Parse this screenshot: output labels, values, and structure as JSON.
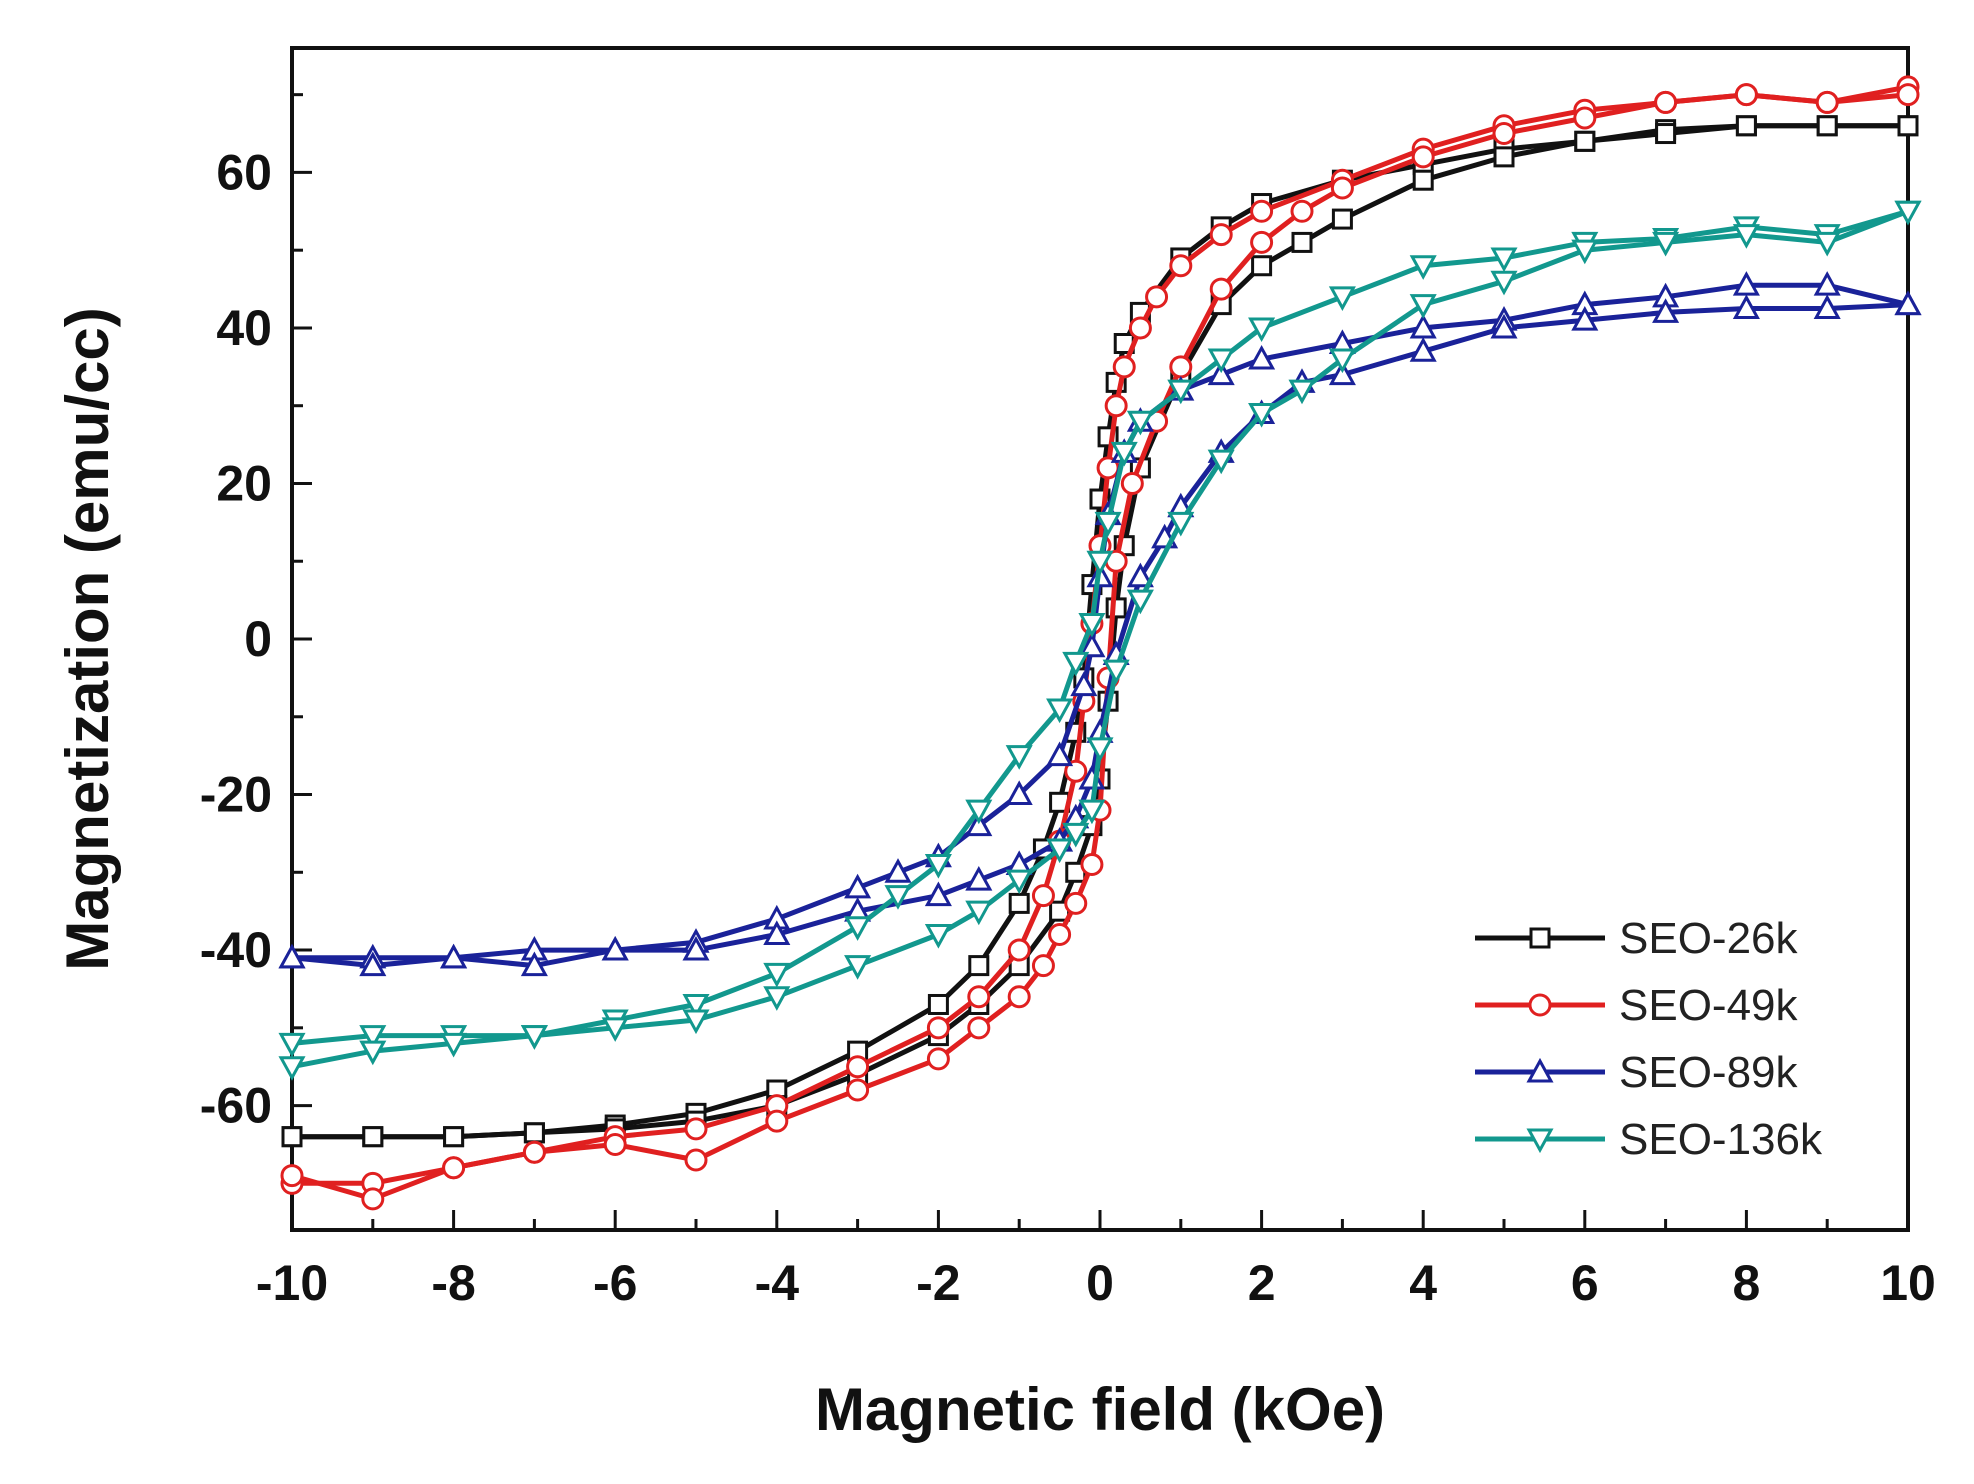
{
  "chart_data": {
    "type": "line",
    "title": "",
    "xlabel": "Magnetic field (kOe)",
    "ylabel": "Magnetization (emu/cc)",
    "xlim": [
      -10,
      10
    ],
    "ylim": [
      -76,
      76
    ],
    "xticks": [
      -10,
      -8,
      -6,
      -4,
      -2,
      0,
      2,
      4,
      6,
      8,
      10
    ],
    "yticks": [
      -60,
      -40,
      -20,
      0,
      20,
      40,
      60
    ],
    "grid": false,
    "legend_position": "bottom-right",
    "series": [
      {
        "name": "SEO-26k",
        "color": "#111111",
        "marker": "square",
        "descending": [
          [
            10,
            66
          ],
          [
            9,
            66
          ],
          [
            8,
            66
          ],
          [
            7,
            65.5
          ],
          [
            6,
            64
          ],
          [
            5,
            63
          ],
          [
            4,
            61
          ],
          [
            3,
            59
          ],
          [
            2,
            56
          ],
          [
            1.5,
            53
          ],
          [
            1,
            49
          ],
          [
            0.5,
            42
          ],
          [
            0.3,
            38
          ],
          [
            0.2,
            33
          ],
          [
            0.1,
            26
          ],
          [
            0,
            18
          ],
          [
            -0.1,
            7
          ],
          [
            -0.2,
            -5
          ],
          [
            -0.3,
            -12
          ],
          [
            -0.5,
            -21
          ],
          [
            -0.7,
            -27
          ],
          [
            -1,
            -34
          ],
          [
            -1.5,
            -42
          ],
          [
            -2,
            -47
          ],
          [
            -3,
            -53
          ],
          [
            -4,
            -58
          ],
          [
            -5,
            -61
          ],
          [
            -6,
            -62.5
          ],
          [
            -7,
            -63.5
          ],
          [
            -8,
            -64
          ],
          [
            -9,
            -64
          ],
          [
            -10,
            -64
          ]
        ],
        "ascending": [
          [
            -10,
            -64
          ],
          [
            -9,
            -64
          ],
          [
            -8,
            -64
          ],
          [
            -7,
            -63.5
          ],
          [
            -6,
            -63
          ],
          [
            -5,
            -62
          ],
          [
            -4,
            -60
          ],
          [
            -3,
            -56
          ],
          [
            -2,
            -51
          ],
          [
            -1.5,
            -47
          ],
          [
            -1,
            -42
          ],
          [
            -0.5,
            -35
          ],
          [
            -0.3,
            -30
          ],
          [
            -0.1,
            -24
          ],
          [
            0,
            -18
          ],
          [
            0.1,
            -8
          ],
          [
            0.2,
            4
          ],
          [
            0.3,
            12
          ],
          [
            0.5,
            22
          ],
          [
            1,
            34
          ],
          [
            1.5,
            43
          ],
          [
            2,
            48
          ],
          [
            2.5,
            51
          ],
          [
            3,
            54
          ],
          [
            4,
            59
          ],
          [
            5,
            62
          ],
          [
            6,
            64
          ],
          [
            7,
            65
          ],
          [
            8,
            66
          ],
          [
            9,
            66
          ],
          [
            10,
            66
          ]
        ]
      },
      {
        "name": "SEO-49k",
        "color": "#e02020",
        "marker": "circle",
        "descending": [
          [
            10,
            71
          ],
          [
            9,
            69
          ],
          [
            8,
            70
          ],
          [
            7,
            69
          ],
          [
            6,
            68
          ],
          [
            5,
            66
          ],
          [
            4,
            63
          ],
          [
            3,
            59
          ],
          [
            2,
            55
          ],
          [
            1.5,
            52
          ],
          [
            1,
            48
          ],
          [
            0.7,
            44
          ],
          [
            0.5,
            40
          ],
          [
            0.3,
            35
          ],
          [
            0.2,
            30
          ],
          [
            0.1,
            22
          ],
          [
            0,
            12
          ],
          [
            -0.1,
            2
          ],
          [
            -0.2,
            -8
          ],
          [
            -0.3,
            -17
          ],
          [
            -0.5,
            -26
          ],
          [
            -0.7,
            -33
          ],
          [
            -1,
            -40
          ],
          [
            -1.5,
            -46
          ],
          [
            -2,
            -50
          ],
          [
            -3,
            -55
          ],
          [
            -4,
            -60
          ],
          [
            -5,
            -63
          ],
          [
            -6,
            -64
          ],
          [
            -7,
            -66
          ],
          [
            -8,
            -68
          ],
          [
            -9,
            -70
          ],
          [
            -10,
            -70
          ]
        ],
        "ascending": [
          [
            -10,
            -69
          ],
          [
            -9,
            -72
          ],
          [
            -8,
            -68
          ],
          [
            -7,
            -66
          ],
          [
            -6,
            -65
          ],
          [
            -5,
            -67
          ],
          [
            -4,
            -62
          ],
          [
            -3,
            -58
          ],
          [
            -2,
            -54
          ],
          [
            -1.5,
            -50
          ],
          [
            -1,
            -46
          ],
          [
            -0.7,
            -42
          ],
          [
            -0.5,
            -38
          ],
          [
            -0.3,
            -34
          ],
          [
            -0.1,
            -29
          ],
          [
            0,
            -22
          ],
          [
            0.1,
            -5
          ],
          [
            0.2,
            10
          ],
          [
            0.4,
            20
          ],
          [
            0.7,
            28
          ],
          [
            1,
            35
          ],
          [
            1.5,
            45
          ],
          [
            2,
            51
          ],
          [
            2.5,
            55
          ],
          [
            3,
            58
          ],
          [
            4,
            62
          ],
          [
            5,
            65
          ],
          [
            6,
            67
          ],
          [
            7,
            69
          ],
          [
            8,
            70
          ],
          [
            9,
            69
          ],
          [
            10,
            70
          ]
        ]
      },
      {
        "name": "SEO-89k",
        "color": "#1a2299",
        "marker": "triangle-up",
        "descending": [
          [
            10,
            43
          ],
          [
            9,
            45.5
          ],
          [
            8,
            45.5
          ],
          [
            7,
            44
          ],
          [
            6,
            43
          ],
          [
            5,
            41
          ],
          [
            4,
            40
          ],
          [
            3,
            38
          ],
          [
            2,
            36
          ],
          [
            1.5,
            34
          ],
          [
            1,
            32
          ],
          [
            0.5,
            28
          ],
          [
            0.3,
            24
          ],
          [
            0.1,
            16
          ],
          [
            0,
            8
          ],
          [
            -0.1,
            -1
          ],
          [
            -0.2,
            -6
          ],
          [
            -0.5,
            -15
          ],
          [
            -1,
            -20
          ],
          [
            -1.5,
            -24
          ],
          [
            -2,
            -28
          ],
          [
            -2.5,
            -30
          ],
          [
            -3,
            -32
          ],
          [
            -4,
            -36
          ],
          [
            -5,
            -39
          ],
          [
            -6,
            -40
          ],
          [
            -7,
            -40
          ],
          [
            -8,
            -41
          ],
          [
            -9,
            -41
          ],
          [
            -10,
            -41
          ]
        ],
        "ascending": [
          [
            -10,
            -41
          ],
          [
            -9,
            -42
          ],
          [
            -8,
            -41
          ],
          [
            -7,
            -42
          ],
          [
            -6,
            -40
          ],
          [
            -5,
            -40
          ],
          [
            -4,
            -38
          ],
          [
            -3,
            -35
          ],
          [
            -2,
            -33
          ],
          [
            -1.5,
            -31
          ],
          [
            -1,
            -29
          ],
          [
            -0.5,
            -26
          ],
          [
            -0.3,
            -23
          ],
          [
            -0.1,
            -18
          ],
          [
            0,
            -12
          ],
          [
            0.2,
            -2
          ],
          [
            0.5,
            8
          ],
          [
            0.8,
            13
          ],
          [
            1,
            17
          ],
          [
            1.5,
            24
          ],
          [
            2,
            29
          ],
          [
            2.5,
            33
          ],
          [
            3,
            34
          ],
          [
            4,
            37
          ],
          [
            5,
            40
          ],
          [
            6,
            41
          ],
          [
            7,
            42
          ],
          [
            8,
            42.5
          ],
          [
            9,
            42.5
          ],
          [
            10,
            43
          ]
        ]
      },
      {
        "name": "SEO-136k",
        "color": "#12988e",
        "marker": "triangle-down",
        "descending": [
          [
            10,
            55
          ],
          [
            9,
            52
          ],
          [
            8,
            53
          ],
          [
            7,
            51.5
          ],
          [
            6,
            51
          ],
          [
            5,
            49
          ],
          [
            4,
            48
          ],
          [
            3,
            44
          ],
          [
            2,
            40
          ],
          [
            1.5,
            36
          ],
          [
            1,
            32
          ],
          [
            0.5,
            28
          ],
          [
            0.3,
            24
          ],
          [
            0.1,
            15
          ],
          [
            0,
            10
          ],
          [
            -0.1,
            2
          ],
          [
            -0.3,
            -3
          ],
          [
            -0.5,
            -9
          ],
          [
            -1,
            -15
          ],
          [
            -1.5,
            -22
          ],
          [
            -2,
            -29
          ],
          [
            -2.5,
            -33
          ],
          [
            -3,
            -37
          ],
          [
            -4,
            -43
          ],
          [
            -5,
            -47
          ],
          [
            -6,
            -49
          ],
          [
            -7,
            -51
          ],
          [
            -8,
            -51
          ],
          [
            -9,
            -51
          ],
          [
            -10,
            -52
          ]
        ],
        "ascending": [
          [
            -10,
            -55
          ],
          [
            -9,
            -53
          ],
          [
            -8,
            -52
          ],
          [
            -7,
            -51
          ],
          [
            -6,
            -50
          ],
          [
            -5,
            -49
          ],
          [
            -4,
            -46
          ],
          [
            -3,
            -42
          ],
          [
            -2,
            -38
          ],
          [
            -1.5,
            -35
          ],
          [
            -1,
            -31
          ],
          [
            -0.5,
            -27
          ],
          [
            -0.3,
            -25
          ],
          [
            -0.1,
            -22
          ],
          [
            0,
            -14
          ],
          [
            0.2,
            -4
          ],
          [
            0.5,
            5
          ],
          [
            1,
            15
          ],
          [
            1.5,
            23
          ],
          [
            2,
            29
          ],
          [
            2.5,
            32
          ],
          [
            3,
            36
          ],
          [
            4,
            43
          ],
          [
            5,
            46
          ],
          [
            6,
            50
          ],
          [
            7,
            51
          ],
          [
            8,
            52
          ],
          [
            9,
            51
          ],
          [
            10,
            55
          ]
        ]
      }
    ]
  }
}
